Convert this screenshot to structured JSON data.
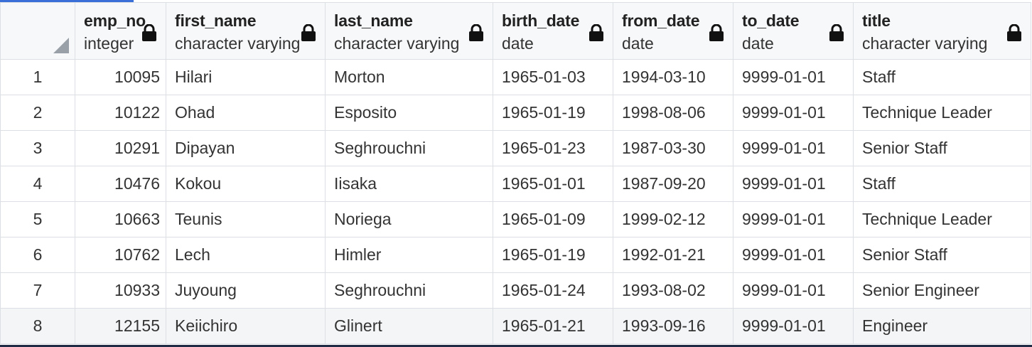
{
  "columns": [
    {
      "name": "emp_no",
      "type": "integer"
    },
    {
      "name": "first_name",
      "type": "character varying"
    },
    {
      "name": "last_name",
      "type": "character varying"
    },
    {
      "name": "birth_date",
      "type": "date"
    },
    {
      "name": "from_date",
      "type": "date"
    },
    {
      "name": "to_date",
      "type": "date"
    },
    {
      "name": "title",
      "type": "character varying"
    }
  ],
  "rows": [
    {
      "n": "1",
      "emp_no": "10095",
      "first_name": "Hilari",
      "last_name": "Morton",
      "birth_date": "1965-01-03",
      "from_date": "1994-03-10",
      "to_date": "9999-01-01",
      "title": "Staff"
    },
    {
      "n": "2",
      "emp_no": "10122",
      "first_name": "Ohad",
      "last_name": "Esposito",
      "birth_date": "1965-01-19",
      "from_date": "1998-08-06",
      "to_date": "9999-01-01",
      "title": "Technique Leader"
    },
    {
      "n": "3",
      "emp_no": "10291",
      "first_name": "Dipayan",
      "last_name": "Seghrouchni",
      "birth_date": "1965-01-23",
      "from_date": "1987-03-30",
      "to_date": "9999-01-01",
      "title": "Senior Staff"
    },
    {
      "n": "4",
      "emp_no": "10476",
      "first_name": "Kokou",
      "last_name": "Iisaka",
      "birth_date": "1965-01-01",
      "from_date": "1987-09-20",
      "to_date": "9999-01-01",
      "title": "Staff"
    },
    {
      "n": "5",
      "emp_no": "10663",
      "first_name": "Teunis",
      "last_name": "Noriega",
      "birth_date": "1965-01-09",
      "from_date": "1999-02-12",
      "to_date": "9999-01-01",
      "title": "Technique Leader"
    },
    {
      "n": "6",
      "emp_no": "10762",
      "first_name": "Lech",
      "last_name": "Himler",
      "birth_date": "1965-01-19",
      "from_date": "1992-01-21",
      "to_date": "9999-01-01",
      "title": "Senior Staff"
    },
    {
      "n": "7",
      "emp_no": "10933",
      "first_name": "Juyoung",
      "last_name": "Seghrouchni",
      "birth_date": "1965-01-24",
      "from_date": "1993-08-02",
      "to_date": "9999-01-01",
      "title": "Senior Engineer"
    },
    {
      "n": "8",
      "emp_no": "12155",
      "first_name": "Keiichiro",
      "last_name": "Glinert",
      "birth_date": "1965-01-21",
      "from_date": "1993-09-16",
      "to_date": "9999-01-01",
      "title": "Engineer"
    }
  ],
  "icons": {
    "column_lock": "lock-icon",
    "select_all": "select-all-corner-icon"
  },
  "colors": {
    "accent": "#3a6fd8",
    "header_bg": "#f7f8fa",
    "grid_line": "#dcdfe4",
    "bottom_bar": "#1f2a44"
  }
}
